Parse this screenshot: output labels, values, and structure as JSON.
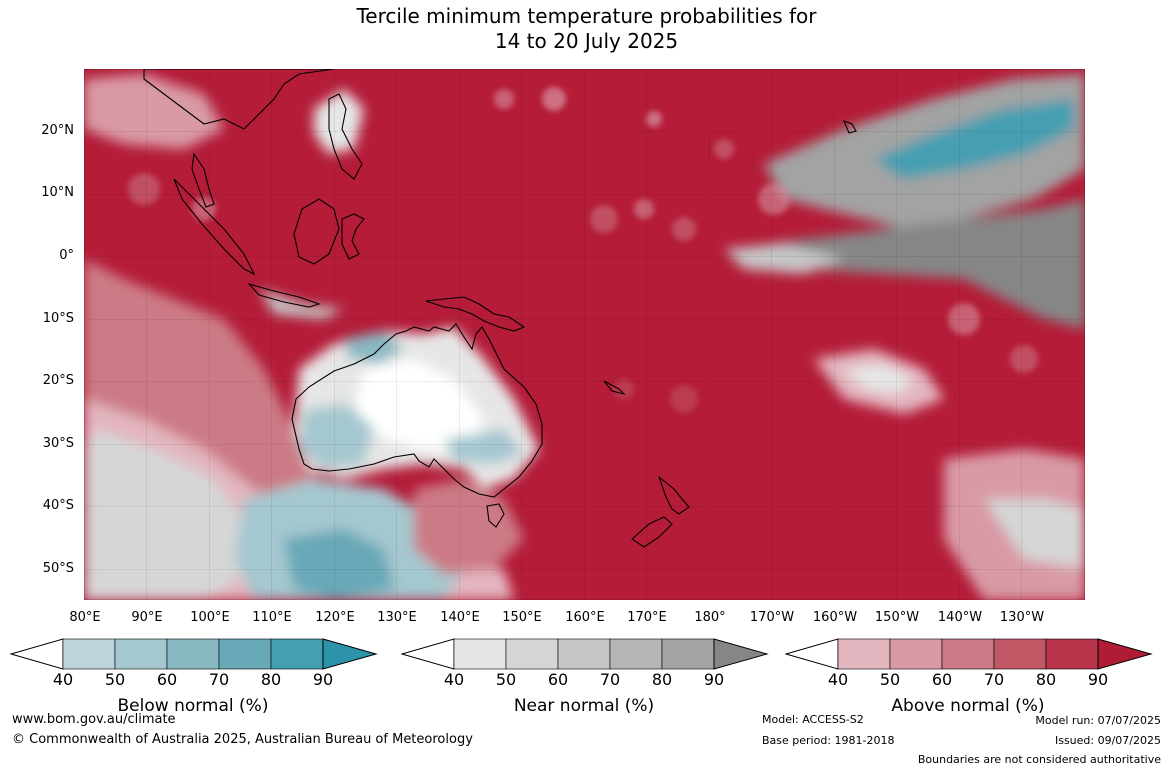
{
  "title": {
    "line1": "Tercile minimum temperature probabilities for",
    "line2": "14 to 20 July 2025"
  },
  "map": {
    "lat_labels": [
      "20°N",
      "10°N",
      "0°",
      "10°S",
      "20°S",
      "30°S",
      "40°S",
      "50°S"
    ],
    "lon_labels": [
      "80°E",
      "90°E",
      "100°E",
      "110°E",
      "120°E",
      "130°E",
      "140°E",
      "150°E",
      "160°E",
      "170°E",
      "180°",
      "170°W",
      "160°W",
      "150°W",
      "140°W",
      "130°W"
    ],
    "colors": {
      "above_dominant": "#b41c38",
      "land_outline": "#000000"
    }
  },
  "colorbars": [
    {
      "title": "Below normal (%)",
      "ticks": [
        "40",
        "50",
        "60",
        "70",
        "80",
        "90"
      ],
      "colors": [
        "#ffffff",
        "#bcd4db",
        "#a5c7cf",
        "#88b8c1",
        "#67a8b7",
        "#449fb1",
        "#2d93a8"
      ]
    },
    {
      "title": "Near normal (%)",
      "ticks": [
        "40",
        "50",
        "60",
        "70",
        "80",
        "90"
      ],
      "colors": [
        "#ffffff",
        "#e6e6e6",
        "#d6d6d6",
        "#c6c6c6",
        "#b5b5b5",
        "#a3a3a3",
        "#868686"
      ]
    },
    {
      "title": "Above normal (%)",
      "ticks": [
        "40",
        "50",
        "60",
        "70",
        "80",
        "90"
      ],
      "colors": [
        "#ffffff",
        "#e3b5bf",
        "#d99aa6",
        "#cc7a85",
        "#c25766",
        "#b8344a",
        "#b01c36"
      ]
    }
  ],
  "footer": {
    "website": "www.bom.gov.au/climate",
    "copyright": "© Commonwealth of Australia 2025, Australian Bureau of Meteorology",
    "model": "Model: ACCESS-S2",
    "base_period": "Base period: 1981-2018",
    "model_run": "Model run: 07/07/2025",
    "issued": "Issued: 09/07/2025",
    "boundaries": "Boundaries are not considered authoritative"
  }
}
